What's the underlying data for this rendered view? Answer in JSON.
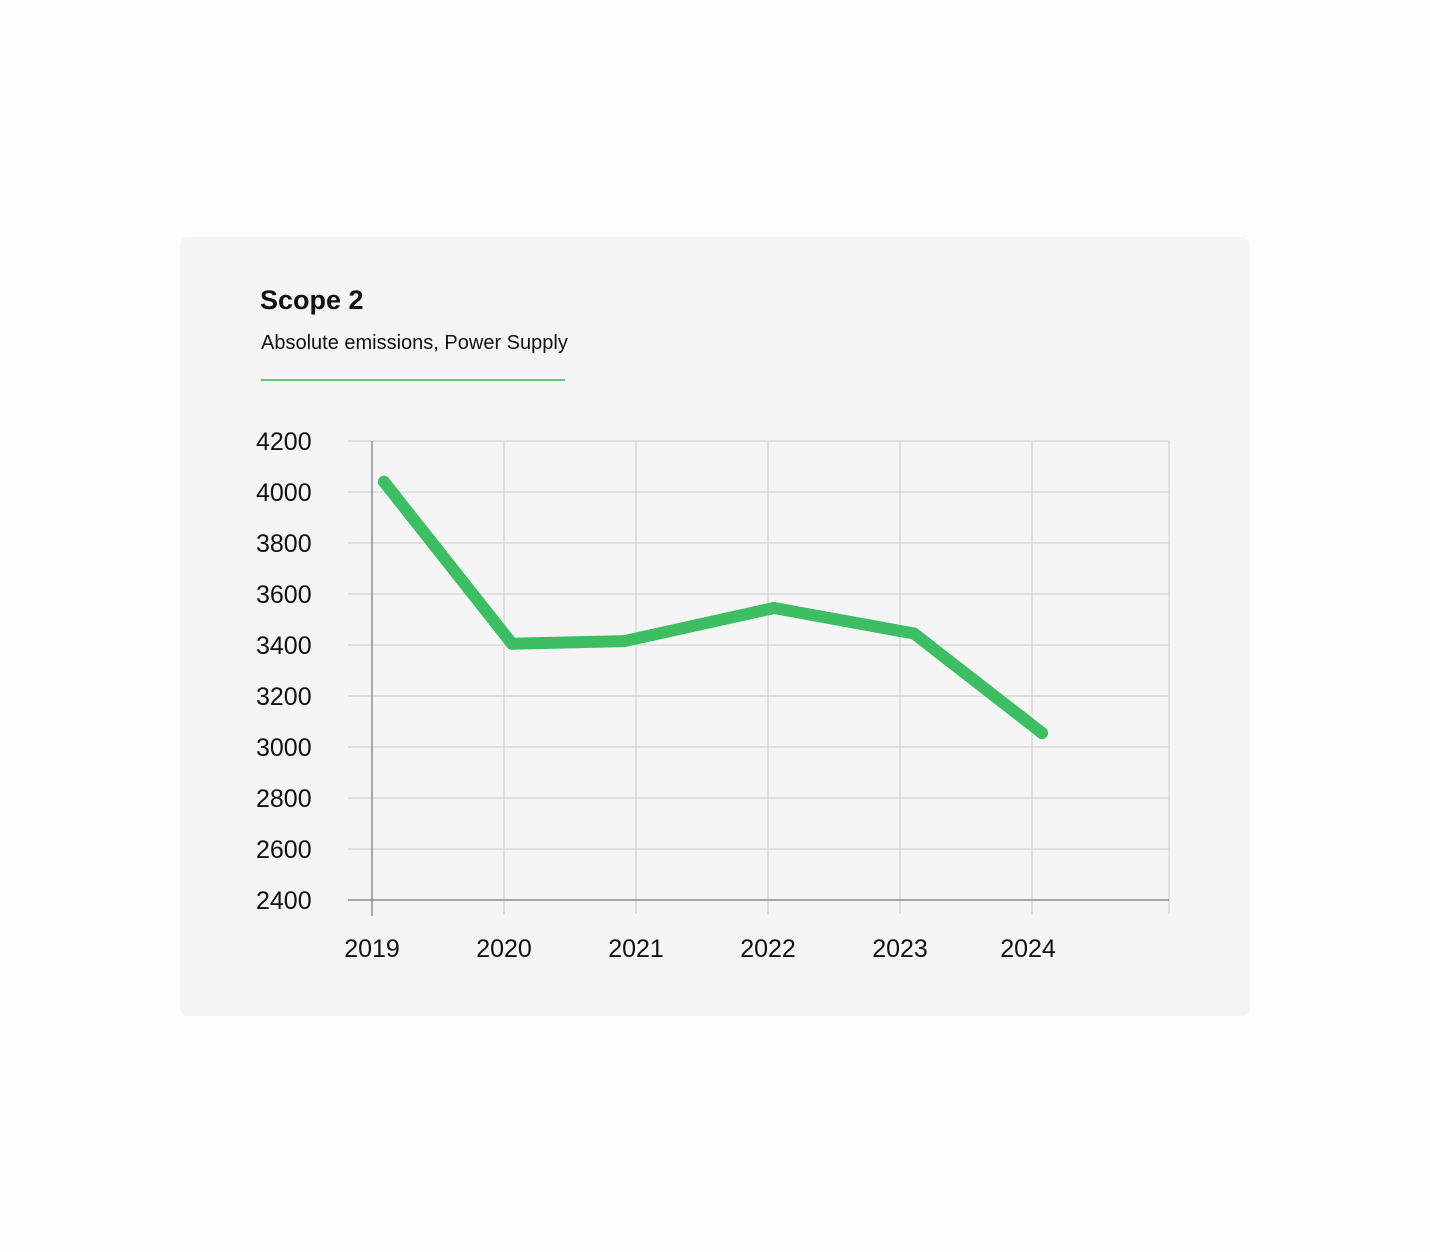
{
  "card": {
    "title": "Scope 2",
    "subtitle": "Absolute emissions, Power Supply"
  },
  "colors": {
    "line": "#3dbe63",
    "accent_divider": "#5ccc7a",
    "grid": "#cccccc",
    "axis": "#777777",
    "card_background": "#f5f5f5"
  },
  "chart_data": {
    "type": "line",
    "title": "Scope 2",
    "subtitle": "Absolute emissions, Power Supply",
    "xlabel": "",
    "ylabel": "",
    "x": [
      "2019",
      "2020",
      "2021",
      "2022",
      "2023",
      "2024"
    ],
    "series": [
      {
        "values": [
          4040,
          3405,
          3415,
          3545,
          3445,
          3055
        ]
      }
    ],
    "ylim": [
      2400,
      4200
    ],
    "yticks": [
      2400,
      2600,
      2800,
      3000,
      3200,
      3400,
      3600,
      3800,
      4000,
      4200
    ],
    "grid": true,
    "legend": "none"
  }
}
